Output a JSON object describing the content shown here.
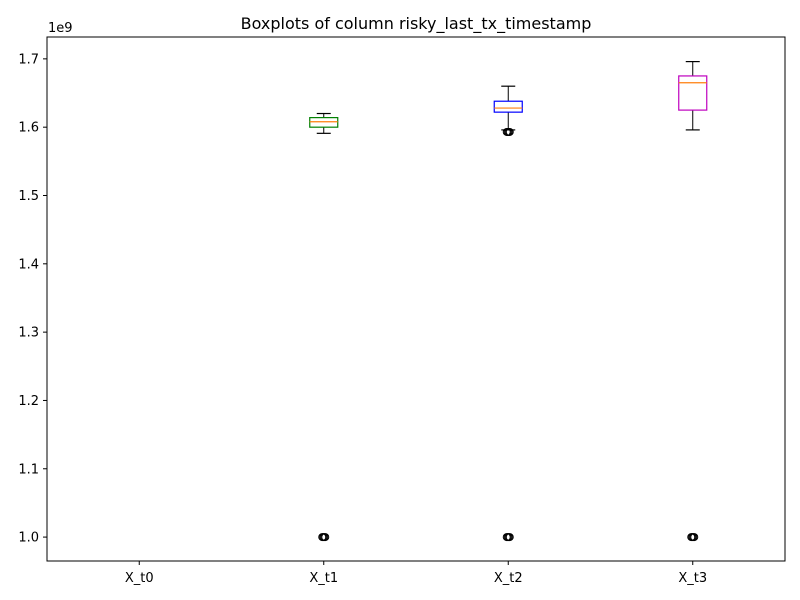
{
  "chart_data": {
    "type": "box",
    "title": "Boxplots of column risky_last_tx_timestamp",
    "xlabel": "",
    "ylabel": "",
    "y_offset_label": "1e9",
    "ylim": [
      0.965,
      1.732
    ],
    "yticks": [
      1.0,
      1.1,
      1.2,
      1.3,
      1.4,
      1.5,
      1.6,
      1.7
    ],
    "ytick_labels": [
      "1.0",
      "1.1",
      "1.2",
      "1.3",
      "1.4",
      "1.5",
      "1.6",
      "1.7"
    ],
    "grid": false,
    "categories": [
      "X_t0",
      "X_t1",
      "X_t2",
      "X_t3"
    ],
    "boxes": [
      {
        "name": "X_t0",
        "color": "#1f77b4",
        "empty": true
      },
      {
        "name": "X_t1",
        "color": "#008000",
        "whisker_low": 1.591,
        "q1": 1.6,
        "median": 1.608,
        "q3": 1.614,
        "whisker_high": 1.62,
        "outliers": [
          1.0
        ]
      },
      {
        "name": "X_t2",
        "color": "#0000ff",
        "whisker_low": 1.596,
        "q1": 1.622,
        "median": 1.628,
        "q3": 1.638,
        "whisker_high": 1.66,
        "outliers": [
          1.0,
          1.593
        ]
      },
      {
        "name": "X_t3",
        "color": "#bf00bf",
        "whisker_low": 1.596,
        "q1": 1.625,
        "median": 1.665,
        "q3": 1.675,
        "whisker_high": 1.696,
        "outliers": [
          1.0
        ]
      }
    ],
    "median_color": "#ff7f0e"
  }
}
